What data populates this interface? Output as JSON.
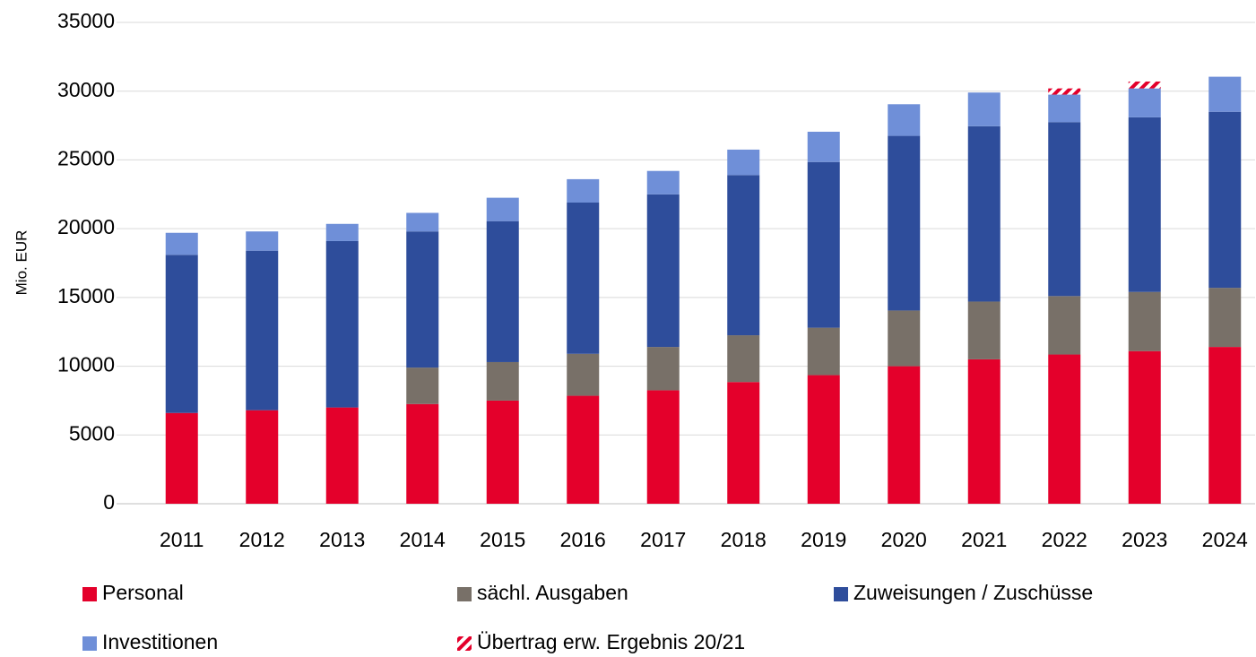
{
  "chart_data": {
    "type": "stacked_bar",
    "y_label": "Mio. EUR",
    "categories": [
      "2011",
      "2012",
      "2013",
      "2014",
      "2015",
      "2016",
      "2017",
      "2018",
      "2019",
      "2020",
      "2021",
      "2022",
      "2023",
      "2024"
    ],
    "series": [
      {
        "name": "Personal",
        "color": "#e4002b",
        "values": [
          6600,
          6800,
          7000,
          7250,
          7500,
          7850,
          8250,
          8850,
          9350,
          10000,
          10500,
          10850,
          11100,
          11400
        ]
      },
      {
        "name": "sächl. Ausgaben",
        "color": "#787068",
        "values": [
          null,
          null,
          null,
          2650,
          2800,
          3050,
          3150,
          3400,
          3450,
          4050,
          4200,
          4250,
          4300,
          4300
        ]
      },
      {
        "name": "Zuweisungen / Zuschüsse",
        "color": "#2e4d9b",
        "values": [
          11500,
          11600,
          12100,
          9900,
          10250,
          11000,
          11100,
          11650,
          12050,
          12700,
          12750,
          12650,
          12700,
          12800
        ]
      },
      {
        "name": "Investitionen",
        "color": "#6f8fd8",
        "values": [
          1600,
          1400,
          1250,
          1350,
          1700,
          1700,
          1700,
          1850,
          2200,
          2300,
          2450,
          2000,
          2100,
          2550
        ]
      },
      {
        "name": "Übertrag erw. Ergebnis 20/21",
        "color": "#e4002b",
        "hatch": true,
        "values": [
          null,
          null,
          null,
          null,
          null,
          null,
          null,
          null,
          null,
          null,
          null,
          450,
          500,
          null
        ]
      }
    ],
    "ylim": [
      0,
      35000
    ],
    "yticks": [
      0,
      5000,
      10000,
      15000,
      20000,
      25000,
      30000,
      35000
    ],
    "grid": true
  }
}
